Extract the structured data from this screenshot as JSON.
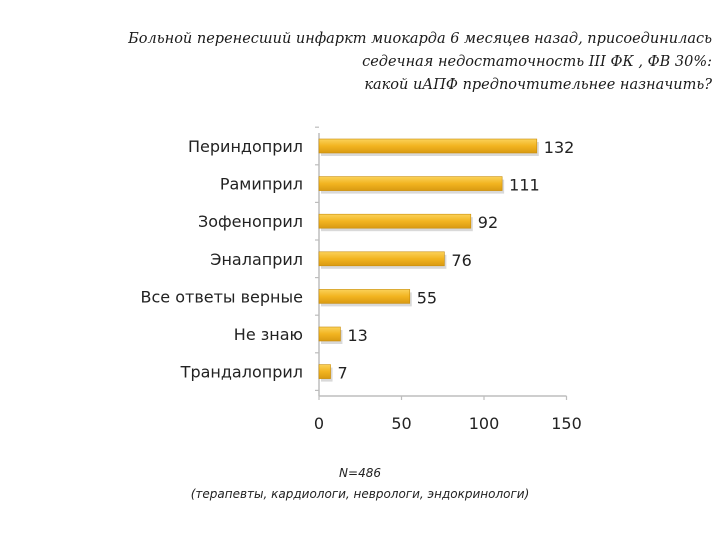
{
  "question": {
    "line1": "Больной перенесший инфаркт миокарда 6 месяцев назад, присоединилась",
    "line2": "седечная недостаточность  III ФК , ФВ 30%:",
    "line3": "какой   иАПФ предпочтительнее назначить?"
  },
  "footnote": {
    "n": "N=486",
    "groups": "(терапевты, кардиологи, неврологи, эндокринологи)"
  },
  "colors": {
    "bar": "#f2b420",
    "bar_edge": "#c98e0c",
    "axis": "#bdbdbd"
  },
  "chart_data": {
    "type": "bar",
    "orientation": "horizontal",
    "categories": [
      "Периндоприл",
      "Рамиприл",
      "Зофеноприл",
      "Эналаприл",
      "Все ответы верные",
      "Не знаю",
      "Трандалоприл"
    ],
    "values": [
      132,
      111,
      92,
      76,
      55,
      13,
      7
    ],
    "xlim": [
      0,
      150
    ],
    "xticks": [
      0,
      50,
      100,
      150
    ],
    "grid": false,
    "legend": "none"
  }
}
